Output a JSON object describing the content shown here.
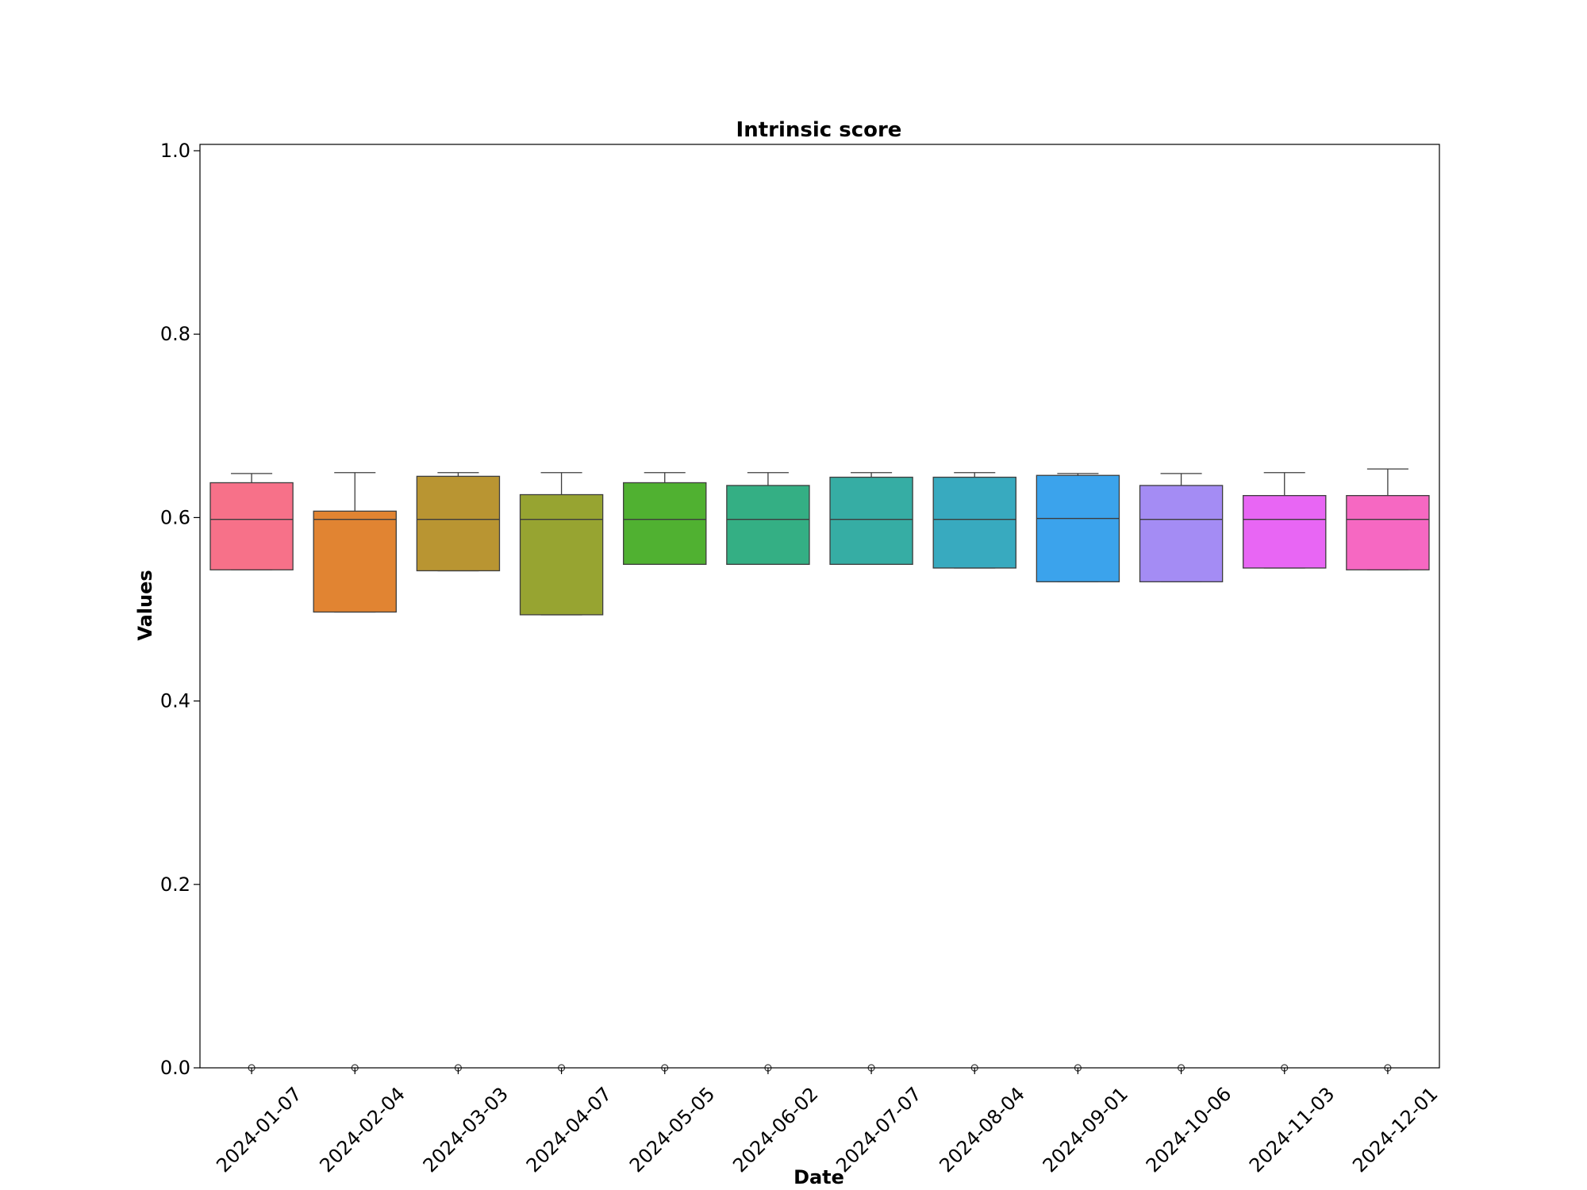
{
  "chart_data": {
    "type": "box",
    "title": "Intrinsic score",
    "xlabel": "Date",
    "ylabel": "Values",
    "ylim": [
      0.0,
      1.0
    ],
    "y_ticks": [
      "0.0",
      "0.2",
      "0.4",
      "0.6",
      "0.8",
      "1.0"
    ],
    "grid": false,
    "legend": "none",
    "categories": [
      "2024-01-07",
      "2024-02-04",
      "2024-03-03",
      "2024-04-07",
      "2024-05-05",
      "2024-06-02",
      "2024-07-07",
      "2024-08-04",
      "2024-09-01",
      "2024-10-06",
      "2024-11-03",
      "2024-12-01"
    ],
    "boxes": [
      {
        "label": "2024-01-07",
        "whisker_low": 0.543,
        "q1": 0.543,
        "median": 0.598,
        "q3": 0.638,
        "whisker_high": 0.648,
        "outliers": [
          0.0
        ],
        "color": "#f77189"
      },
      {
        "label": "2024-02-04",
        "whisker_low": 0.497,
        "q1": 0.497,
        "median": 0.598,
        "q3": 0.607,
        "whisker_high": 0.649,
        "outliers": [
          0.0
        ],
        "color": "#e18432"
      },
      {
        "label": "2024-03-03",
        "whisker_low": 0.542,
        "q1": 0.542,
        "median": 0.598,
        "q3": 0.645,
        "whisker_high": 0.649,
        "outliers": [
          0.0
        ],
        "color": "#b99532"
      },
      {
        "label": "2024-04-07",
        "whisker_low": 0.494,
        "q1": 0.494,
        "median": 0.598,
        "q3": 0.625,
        "whisker_high": 0.649,
        "outliers": [
          0.0
        ],
        "color": "#97a431"
      },
      {
        "label": "2024-05-05",
        "whisker_low": 0.549,
        "q1": 0.549,
        "median": 0.598,
        "q3": 0.638,
        "whisker_high": 0.649,
        "outliers": [
          0.0
        ],
        "color": "#50b131"
      },
      {
        "label": "2024-06-02",
        "whisker_low": 0.549,
        "q1": 0.549,
        "median": 0.598,
        "q3": 0.635,
        "whisker_high": 0.649,
        "outliers": [
          0.0
        ],
        "color": "#34af84"
      },
      {
        "label": "2024-07-07",
        "whisker_low": 0.549,
        "q1": 0.549,
        "median": 0.598,
        "q3": 0.644,
        "whisker_high": 0.649,
        "outliers": [
          0.0
        ],
        "color": "#36ada4"
      },
      {
        "label": "2024-08-04",
        "whisker_low": 0.545,
        "q1": 0.545,
        "median": 0.598,
        "q3": 0.644,
        "whisker_high": 0.649,
        "outliers": [
          0.0
        ],
        "color": "#38aabf"
      },
      {
        "label": "2024-09-01",
        "whisker_low": 0.53,
        "q1": 0.53,
        "median": 0.599,
        "q3": 0.646,
        "whisker_high": 0.648,
        "outliers": [
          0.0
        ],
        "color": "#3ba3ec"
      },
      {
        "label": "2024-10-06",
        "whisker_low": 0.53,
        "q1": 0.53,
        "median": 0.598,
        "q3": 0.635,
        "whisker_high": 0.648,
        "outliers": [
          0.0
        ],
        "color": "#a48cf4"
      },
      {
        "label": "2024-11-03",
        "whisker_low": 0.545,
        "q1": 0.545,
        "median": 0.598,
        "q3": 0.624,
        "whisker_high": 0.649,
        "outliers": [
          0.0
        ],
        "color": "#e866f4"
      },
      {
        "label": "2024-12-01",
        "whisker_low": 0.543,
        "q1": 0.543,
        "median": 0.598,
        "q3": 0.624,
        "whisker_high": 0.653,
        "outliers": [
          0.0
        ],
        "color": "#f668c2"
      }
    ]
  }
}
